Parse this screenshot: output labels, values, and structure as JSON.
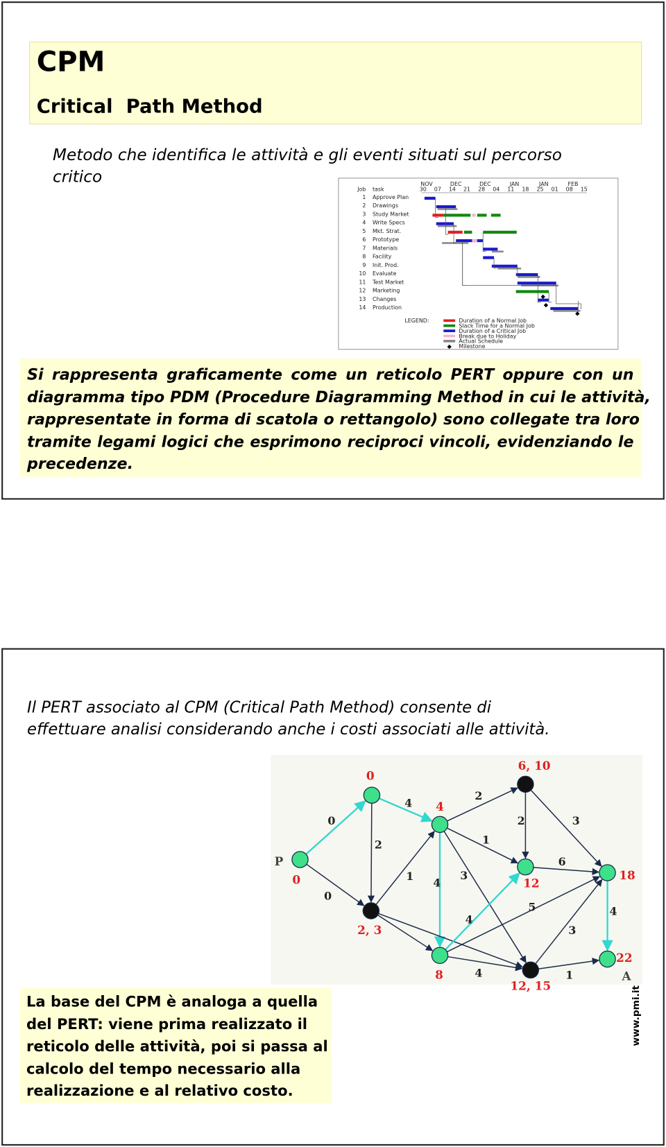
{
  "slide1": {
    "title": "CPM",
    "subtitle": "Critical  Path Method",
    "intro": [
      "Metodo che identifica le attività e gli eventi situati sul percorso",
      "critico"
    ],
    "gantt": {
      "job_header": "Job",
      "task_header": "task",
      "months": [
        "NOV",
        "DEC",
        "DEC",
        "JAN",
        "JAN",
        "FEB"
      ],
      "days": [
        "30",
        "07",
        "14",
        "21",
        "28",
        "04",
        "11",
        "18",
        "25",
        "01",
        "08",
        "15"
      ],
      "tasks": [
        {
          "job": "1",
          "task": "Approve Plan"
        },
        {
          "job": "2",
          "task": "Drawings"
        },
        {
          "job": "3",
          "task": "Study Market"
        },
        {
          "job": "4",
          "task": "Write Specs"
        },
        {
          "job": "5",
          "task": "Mkt. Strat."
        },
        {
          "job": "6",
          "task": "Prototype"
        },
        {
          "job": "7",
          "task": "Materials"
        },
        {
          "job": "8",
          "task": "Facility"
        },
        {
          "job": "9",
          "task": "Init. Prod."
        },
        {
          "job": "10",
          "task": "Evaluate"
        },
        {
          "job": "11",
          "task": "Test Market"
        },
        {
          "job": "12",
          "task": "Marketing"
        },
        {
          "job": "13",
          "task": "Changes"
        },
        {
          "job": "14",
          "task": "Production"
        }
      ],
      "legend_title": "LEGEND:",
      "legend": [
        "Duration of a Normal Job",
        "Slack Time for a Normal Job",
        "Duration of a Critical Job",
        "Break due to Holiday",
        "Actual Schedule",
        "Milestone"
      ]
    },
    "paragraph": [
      "Si rappresenta graficamente come un reticolo PERT oppure con un",
      "diagramma tipo PDM (Procedure Diagramming Method in cui le attività,",
      "rappresentate in forma di scatola o rettangolo) sono collegate tra loro",
      "tramite legami logici che esprimono reciproci vincoli, evidenziando le",
      "precedenze."
    ]
  },
  "slide2": {
    "intro": [
      "Il PERT associato al CPM (Critical Path Method) consente di",
      "effettuare analisi considerando anche i costi associati alle attività."
    ],
    "network": {
      "start_label": "P",
      "end_label": "A",
      "node_labels": [
        "0",
        "0",
        "4",
        "6, 10",
        "12",
        "18",
        "2, 3",
        "8",
        "12, 15",
        "22"
      ],
      "edge_labels": [
        "0",
        "0",
        "4",
        "2",
        "2",
        "1",
        "1",
        "2",
        "3",
        "3",
        "4",
        "6",
        "5",
        "4",
        "4",
        "3",
        "4",
        "1"
      ]
    },
    "summary": [
      "La base del CPM è analoga a quella",
      "del PERT: viene prima realizzato il",
      "reticolo delle attività, poi si passa al",
      "calcolo del tempo necessario alla",
      "realizzazione e al relativo costo."
    ],
    "footer": "www.pmi.it"
  }
}
